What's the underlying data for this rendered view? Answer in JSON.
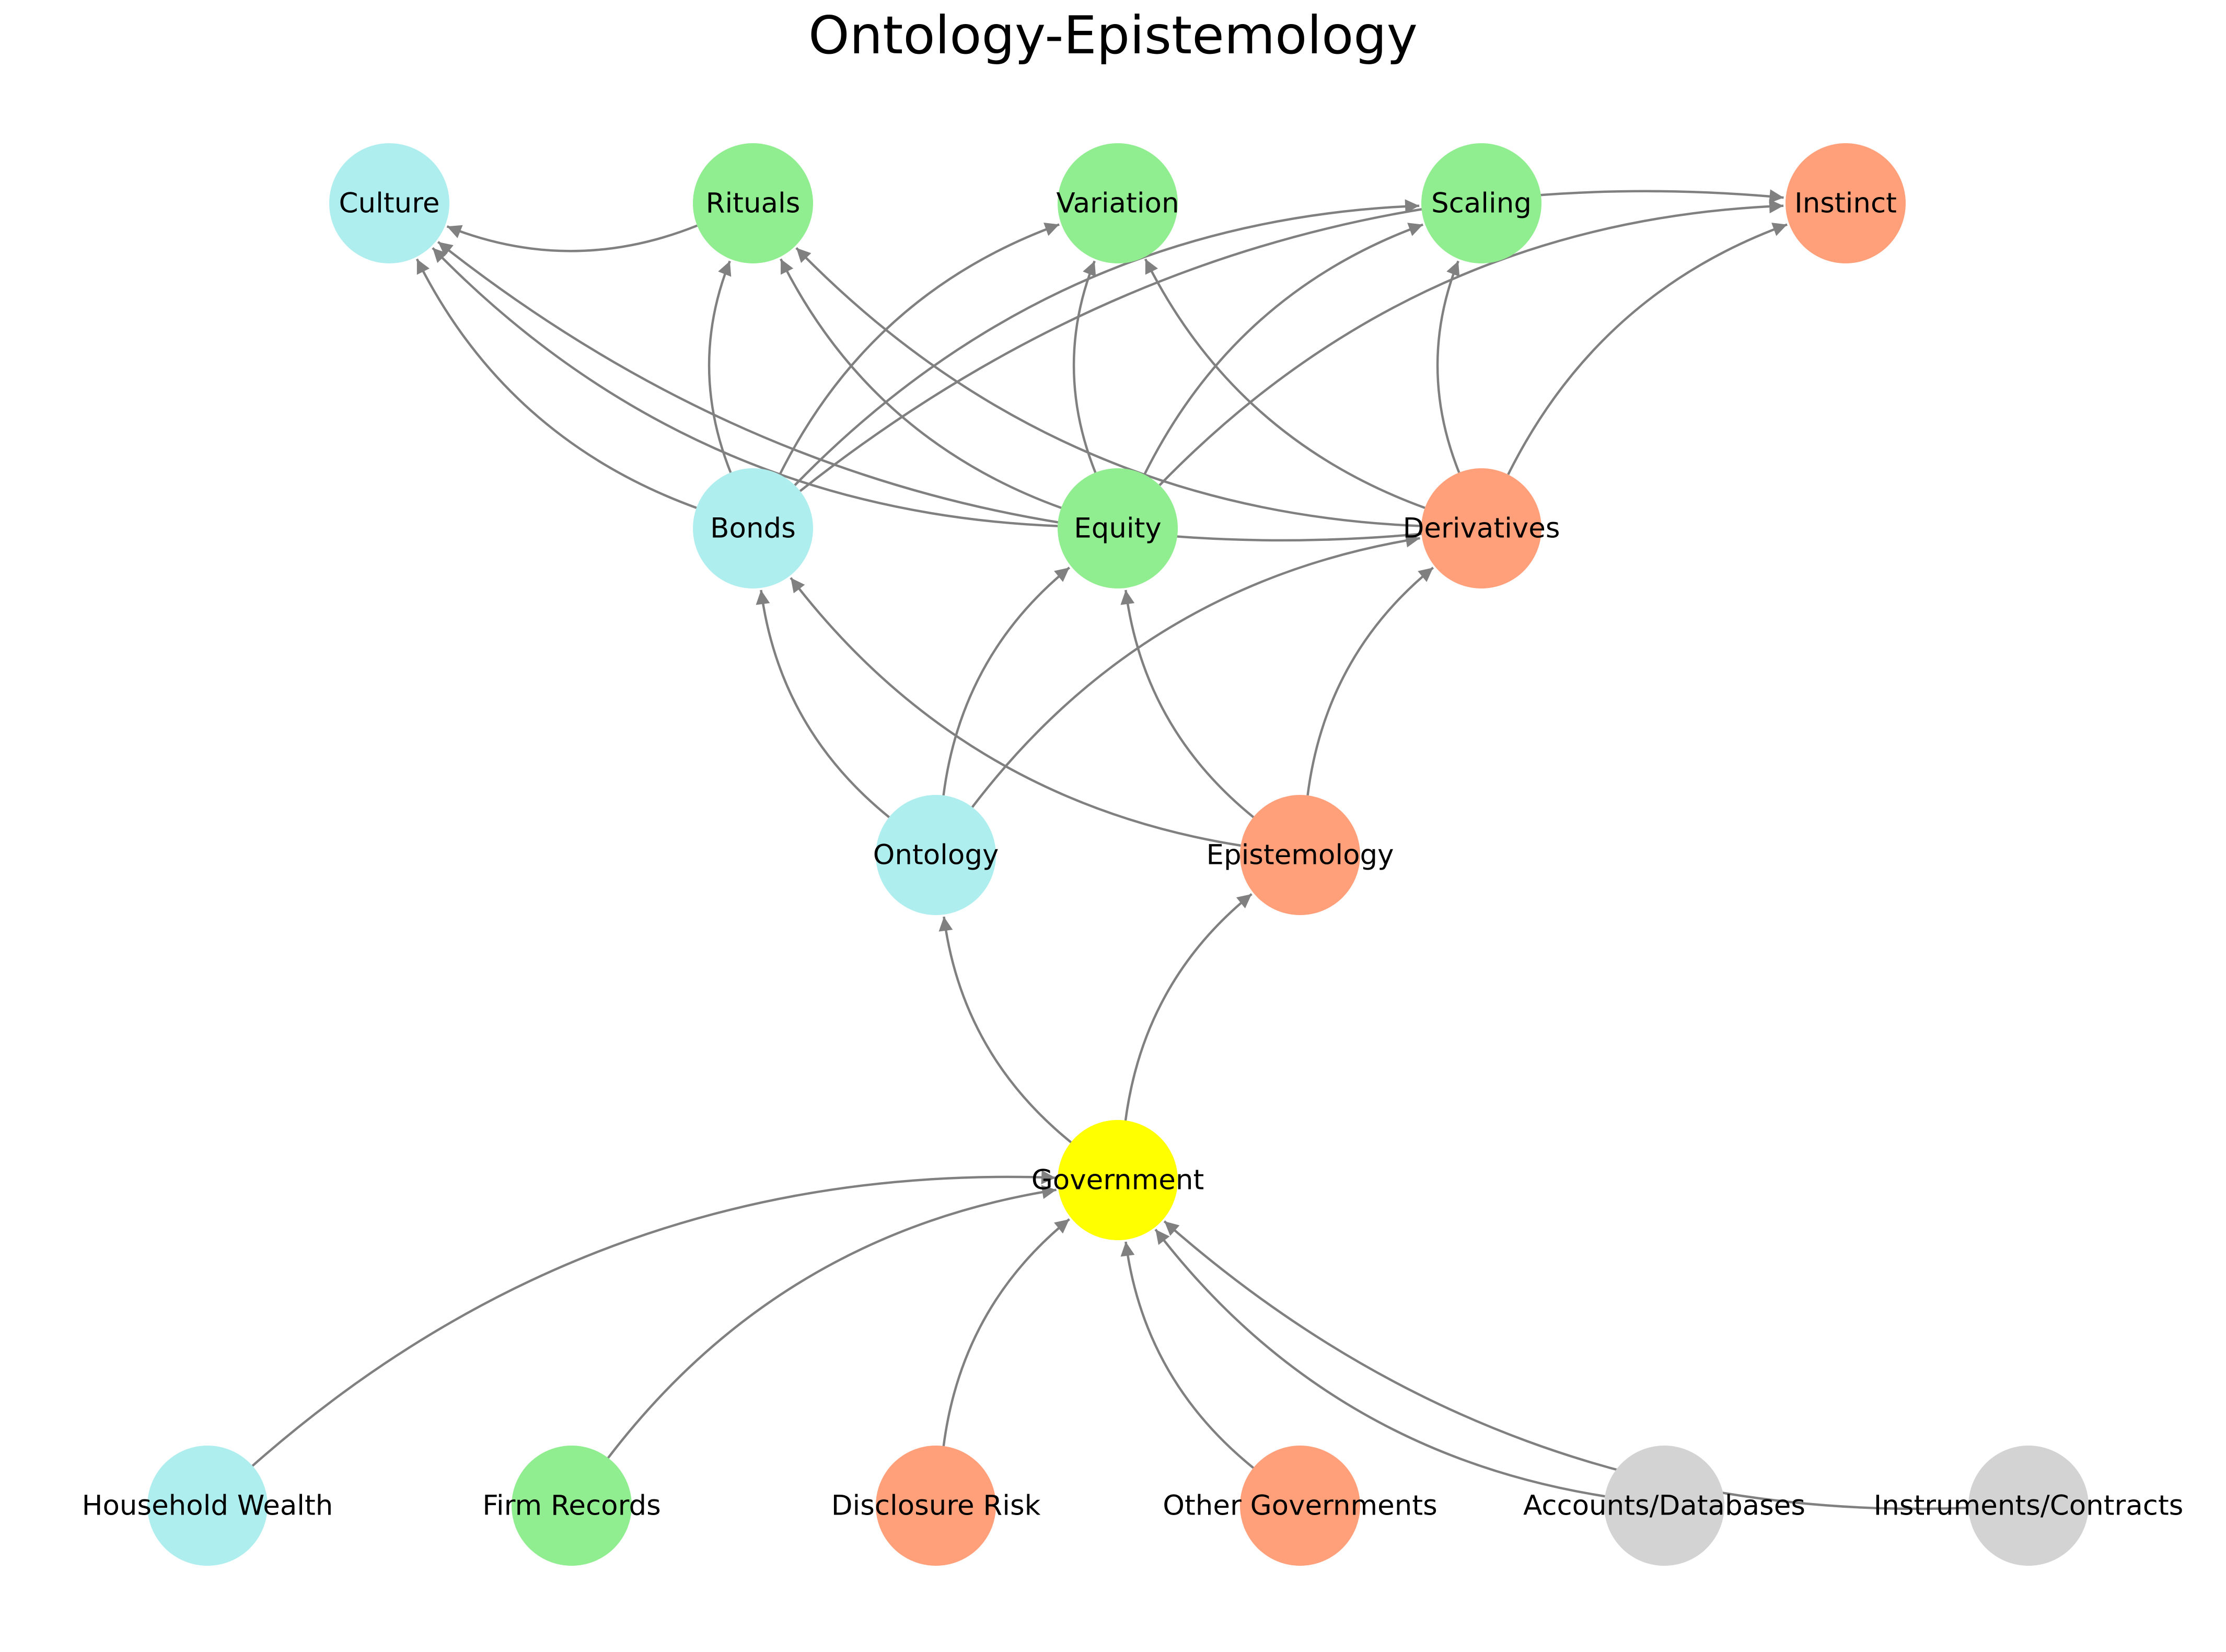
{
  "title": "Ontology-Epistemology",
  "colors": {
    "paleturquoise": "#AFEEEE",
    "lightgreen": "#90EE90",
    "lightsalmon": "#FFA07A",
    "yellow": "#FFFF00",
    "lightgray": "#D3D3D3",
    "edge": "#808080"
  },
  "nodes": [
    {
      "id": "household",
      "label": "Household Wealth",
      "color": "paleturquoise"
    },
    {
      "id": "firm",
      "label": "Firm Records",
      "color": "lightgreen"
    },
    {
      "id": "disclosure",
      "label": "Disclosure Risk",
      "color": "lightsalmon"
    },
    {
      "id": "othergov",
      "label": "Other Governments",
      "color": "lightsalmon"
    },
    {
      "id": "accounts",
      "label": "Accounts/Databases",
      "color": "lightgray"
    },
    {
      "id": "instruments",
      "label": "Instruments/Contracts",
      "color": "lightgray"
    },
    {
      "id": "government",
      "label": "Government",
      "color": "yellow"
    },
    {
      "id": "ontology",
      "label": "Ontology",
      "color": "paleturquoise"
    },
    {
      "id": "epistemology",
      "label": "Epistemology",
      "color": "lightsalmon"
    },
    {
      "id": "bonds",
      "label": "Bonds",
      "color": "paleturquoise"
    },
    {
      "id": "equity",
      "label": "Equity",
      "color": "lightgreen"
    },
    {
      "id": "derivatives",
      "label": "Derivatives",
      "color": "lightsalmon"
    },
    {
      "id": "culture",
      "label": "Culture",
      "color": "paleturquoise"
    },
    {
      "id": "rituals",
      "label": "Rituals",
      "color": "lightgreen"
    },
    {
      "id": "variation",
      "label": "Variation",
      "color": "lightgreen"
    },
    {
      "id": "scaling",
      "label": "Scaling",
      "color": "lightgreen"
    },
    {
      "id": "instinct",
      "label": "Instinct",
      "color": "lightsalmon"
    }
  ],
  "edges": [
    {
      "from": "household",
      "to": "government"
    },
    {
      "from": "firm",
      "to": "government"
    },
    {
      "from": "disclosure",
      "to": "government"
    },
    {
      "from": "othergov",
      "to": "government"
    },
    {
      "from": "accounts",
      "to": "government"
    },
    {
      "from": "instruments",
      "to": "government"
    },
    {
      "from": "government",
      "to": "ontology"
    },
    {
      "from": "government",
      "to": "epistemology"
    },
    {
      "from": "ontology",
      "to": "bonds"
    },
    {
      "from": "ontology",
      "to": "equity"
    },
    {
      "from": "ontology",
      "to": "derivatives"
    },
    {
      "from": "epistemology",
      "to": "bonds"
    },
    {
      "from": "epistemology",
      "to": "equity"
    },
    {
      "from": "epistemology",
      "to": "derivatives"
    },
    {
      "from": "bonds",
      "to": "culture"
    },
    {
      "from": "bonds",
      "to": "rituals"
    },
    {
      "from": "bonds",
      "to": "variation"
    },
    {
      "from": "bonds",
      "to": "scaling"
    },
    {
      "from": "bonds",
      "to": "instinct"
    },
    {
      "from": "equity",
      "to": "culture"
    },
    {
      "from": "equity",
      "to": "rituals"
    },
    {
      "from": "equity",
      "to": "variation"
    },
    {
      "from": "equity",
      "to": "scaling"
    },
    {
      "from": "equity",
      "to": "instinct"
    },
    {
      "from": "derivatives",
      "to": "culture"
    },
    {
      "from": "derivatives",
      "to": "rituals"
    },
    {
      "from": "derivatives",
      "to": "variation"
    },
    {
      "from": "derivatives",
      "to": "scaling"
    },
    {
      "from": "derivatives",
      "to": "instinct"
    },
    {
      "from": "rituals",
      "to": "culture"
    }
  ]
}
